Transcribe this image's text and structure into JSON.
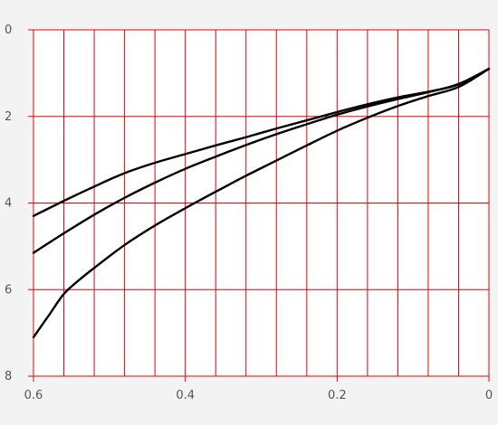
{
  "chart_data": {
    "type": "line",
    "title": "",
    "xlabel": "",
    "ylabel": "",
    "xlim": [
      0.6,
      0
    ],
    "ylim": [
      8,
      0
    ],
    "x_ticks": [
      0.6,
      0.4,
      0.2,
      0
    ],
    "x_tick_labels": [
      "0.6",
      "0.4",
      "0.2",
      "0"
    ],
    "y_ticks": [
      0,
      2,
      4,
      6,
      8
    ],
    "y_tick_labels": [
      "0",
      "2",
      "4",
      "6",
      "8"
    ],
    "x_gridlines": [
      0.6,
      0.56,
      0.52,
      0.48,
      0.44,
      0.4,
      0.36,
      0.32,
      0.28,
      0.24,
      0.2,
      0.16,
      0.12,
      0.08,
      0.04,
      0
    ],
    "y_gridlines": [
      0,
      2,
      4,
      6,
      8
    ],
    "grid": true,
    "legend": "none",
    "colors": {
      "grid": "#e8000a",
      "line": "#000000",
      "background": "#f3f3f3",
      "plot_background": "#ffffff"
    },
    "series": [
      {
        "x": [
          0.6,
          0.56,
          0.52,
          0.48,
          0.44,
          0.4,
          0.36,
          0.32,
          0.28,
          0.24,
          0.2,
          0.16,
          0.12,
          0.08,
          0.04,
          0
        ],
        "y": [
          4.3,
          3.95,
          3.62,
          3.31,
          3.07,
          2.87,
          2.67,
          2.48,
          2.28,
          2.09,
          1.9,
          1.72,
          1.56,
          1.43,
          1.26,
          0.9
        ]
      },
      {
        "x": [
          0.6,
          0.56,
          0.52,
          0.48,
          0.44,
          0.4,
          0.36,
          0.32,
          0.28,
          0.24,
          0.2,
          0.16,
          0.12,
          0.08,
          0.04,
          0
        ],
        "y": [
          5.15,
          4.7,
          4.27,
          3.88,
          3.53,
          3.21,
          2.93,
          2.66,
          2.41,
          2.18,
          1.96,
          1.77,
          1.6,
          1.44,
          1.25,
          0.9
        ]
      },
      {
        "x": [
          0.6,
          0.58,
          0.56,
          0.54,
          0.52,
          0.48,
          0.44,
          0.4,
          0.36,
          0.32,
          0.28,
          0.24,
          0.2,
          0.16,
          0.12,
          0.08,
          0.04,
          0
        ],
        "y": [
          7.1,
          6.6,
          6.1,
          5.78,
          5.5,
          4.97,
          4.52,
          4.12,
          3.74,
          3.37,
          3.02,
          2.67,
          2.33,
          2.03,
          1.76,
          1.53,
          1.32,
          0.9
        ]
      }
    ]
  }
}
